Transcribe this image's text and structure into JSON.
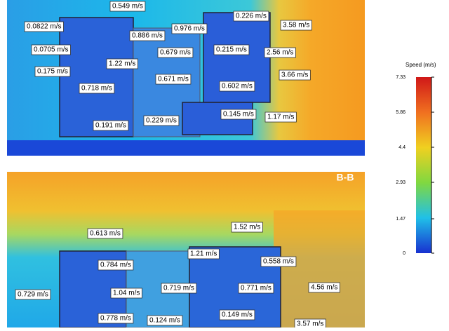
{
  "panels": [
    {
      "labels": [
        "0.549 m/s",
        "0.226 m/s",
        "0.0822 m/s",
        "0.886 m/s",
        "0.976 m/s",
        "3.58 m/s",
        "0.0705 m/s",
        "0.679 m/s",
        "0.215 m/s",
        "2.56 m/s",
        "0.175 m/s",
        "1.22 m/s",
        "3.66 m/s",
        "0.671 m/s",
        "0.602 m/s",
        "0.718 m/s",
        "0.145 m/s",
        "1.17 m/s",
        "0.191 m/s",
        "0.229 m/s"
      ]
    },
    {
      "title": "B-B",
      "labels": [
        "0.613 m/s",
        "1.52 m/s",
        "1.21 m/s",
        "0.784 m/s",
        "0.558 m/s",
        "0.729 m/s",
        "1.04 m/s",
        "0.719 m/s",
        "0.771 m/s",
        "4.56 m/s",
        "0.778 m/s",
        "0.124 m/s",
        "0.149 m/s",
        "3.57 m/s"
      ]
    }
  ],
  "legend": {
    "title": "Speed (m/s)",
    "ticks": [
      "7.33",
      "5.86",
      "4.4",
      "2.93",
      "1.47",
      "0"
    ]
  }
}
